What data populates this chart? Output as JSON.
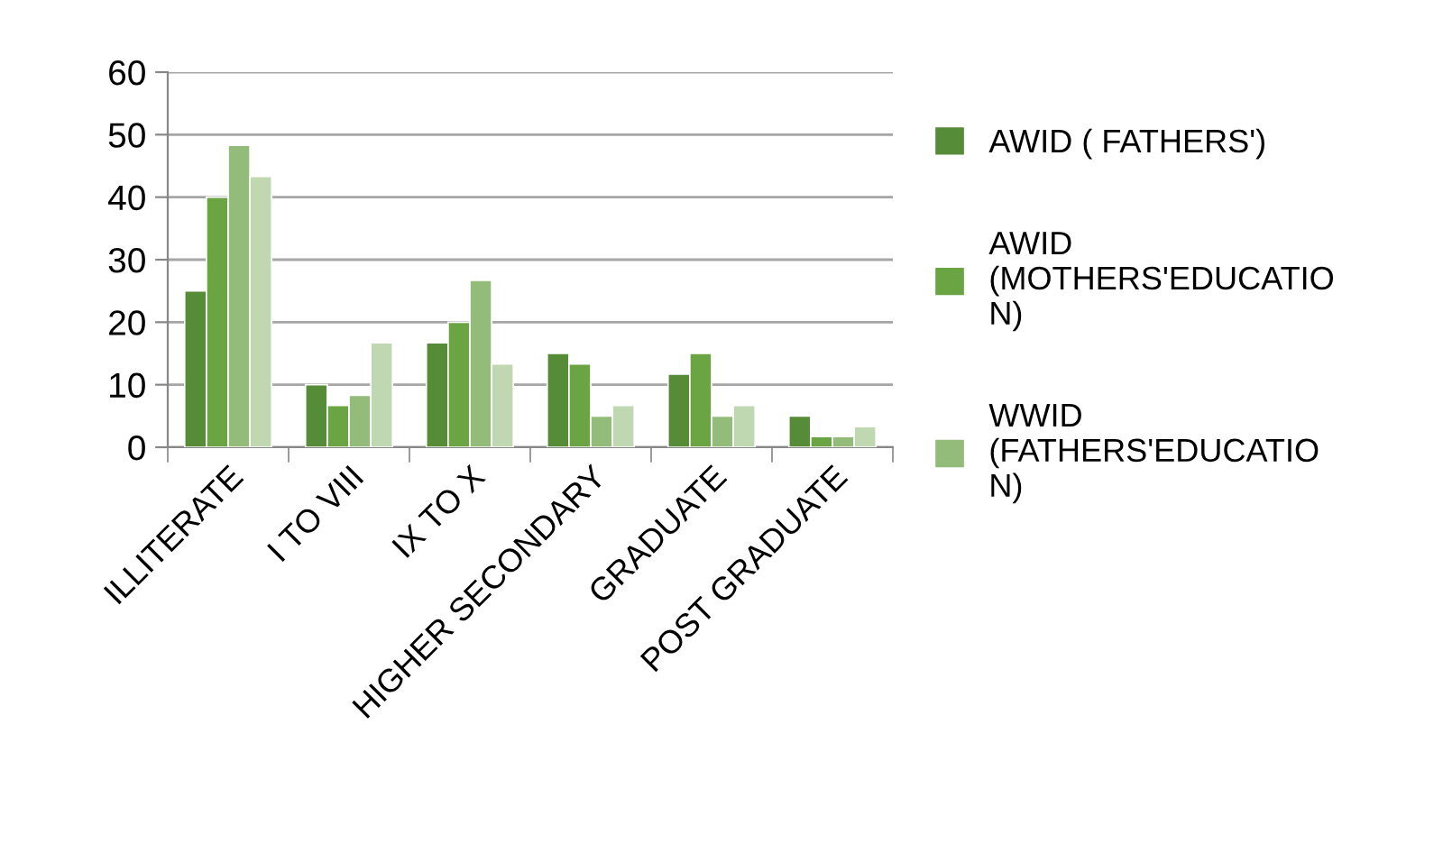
{
  "chart_data": {
    "type": "bar",
    "categories": [
      "ILLITERATE",
      "I TO VIII",
      "IX TO X",
      "HIGHER SECONDARY",
      "GRADUATE",
      "POST GRADUATE"
    ],
    "series": [
      {
        "name": "AWID ( FATHERS')",
        "color": "#568b37",
        "values": [
          25,
          10,
          16.7,
          15,
          11.7,
          5
        ]
      },
      {
        "name": "AWID (MOTHERS'EDUCATION)",
        "color": "#6aa443",
        "values": [
          40,
          6.7,
          20,
          13.3,
          15,
          1.7
        ]
      },
      {
        "name": "WWID (FATHERS'EDUCATION)",
        "color": "#93bc7a",
        "values": [
          48.3,
          8.3,
          26.7,
          5,
          5,
          1.7
        ]
      },
      {
        "color": "#c0d8b2",
        "values": [
          43.3,
          16.7,
          13.3,
          6.7,
          6.7,
          3.3
        ]
      }
    ],
    "ylim": [
      0,
      60
    ],
    "yticks": [
      0,
      10,
      20,
      30,
      40,
      50,
      60
    ],
    "grid": "y",
    "legend": "right"
  }
}
